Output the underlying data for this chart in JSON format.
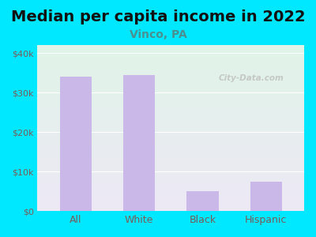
{
  "title": "Median per capita income in 2022",
  "subtitle": "Vinco, PA",
  "categories": [
    "All",
    "White",
    "Black",
    "Hispanic"
  ],
  "values": [
    34000,
    34500,
    5000,
    7500
  ],
  "bar_color": "#c9b8e8",
  "title_fontsize": 14,
  "subtitle_fontsize": 10,
  "subtitle_color": "#4a9090",
  "title_color": "#111111",
  "tick_color": "#7a5c5c",
  "ylim": [
    0,
    42000
  ],
  "yticks": [
    0,
    10000,
    20000,
    30000,
    40000
  ],
  "ytick_labels": [
    "$0",
    "$10k",
    "$20k",
    "$30k",
    "$40k"
  ],
  "background_outer": "#00e8ff",
  "background_inner_top": "#e0f5e8",
  "background_inner_bottom": "#ede8f5",
  "watermark": "City-Data.com",
  "bar_width": 0.5
}
